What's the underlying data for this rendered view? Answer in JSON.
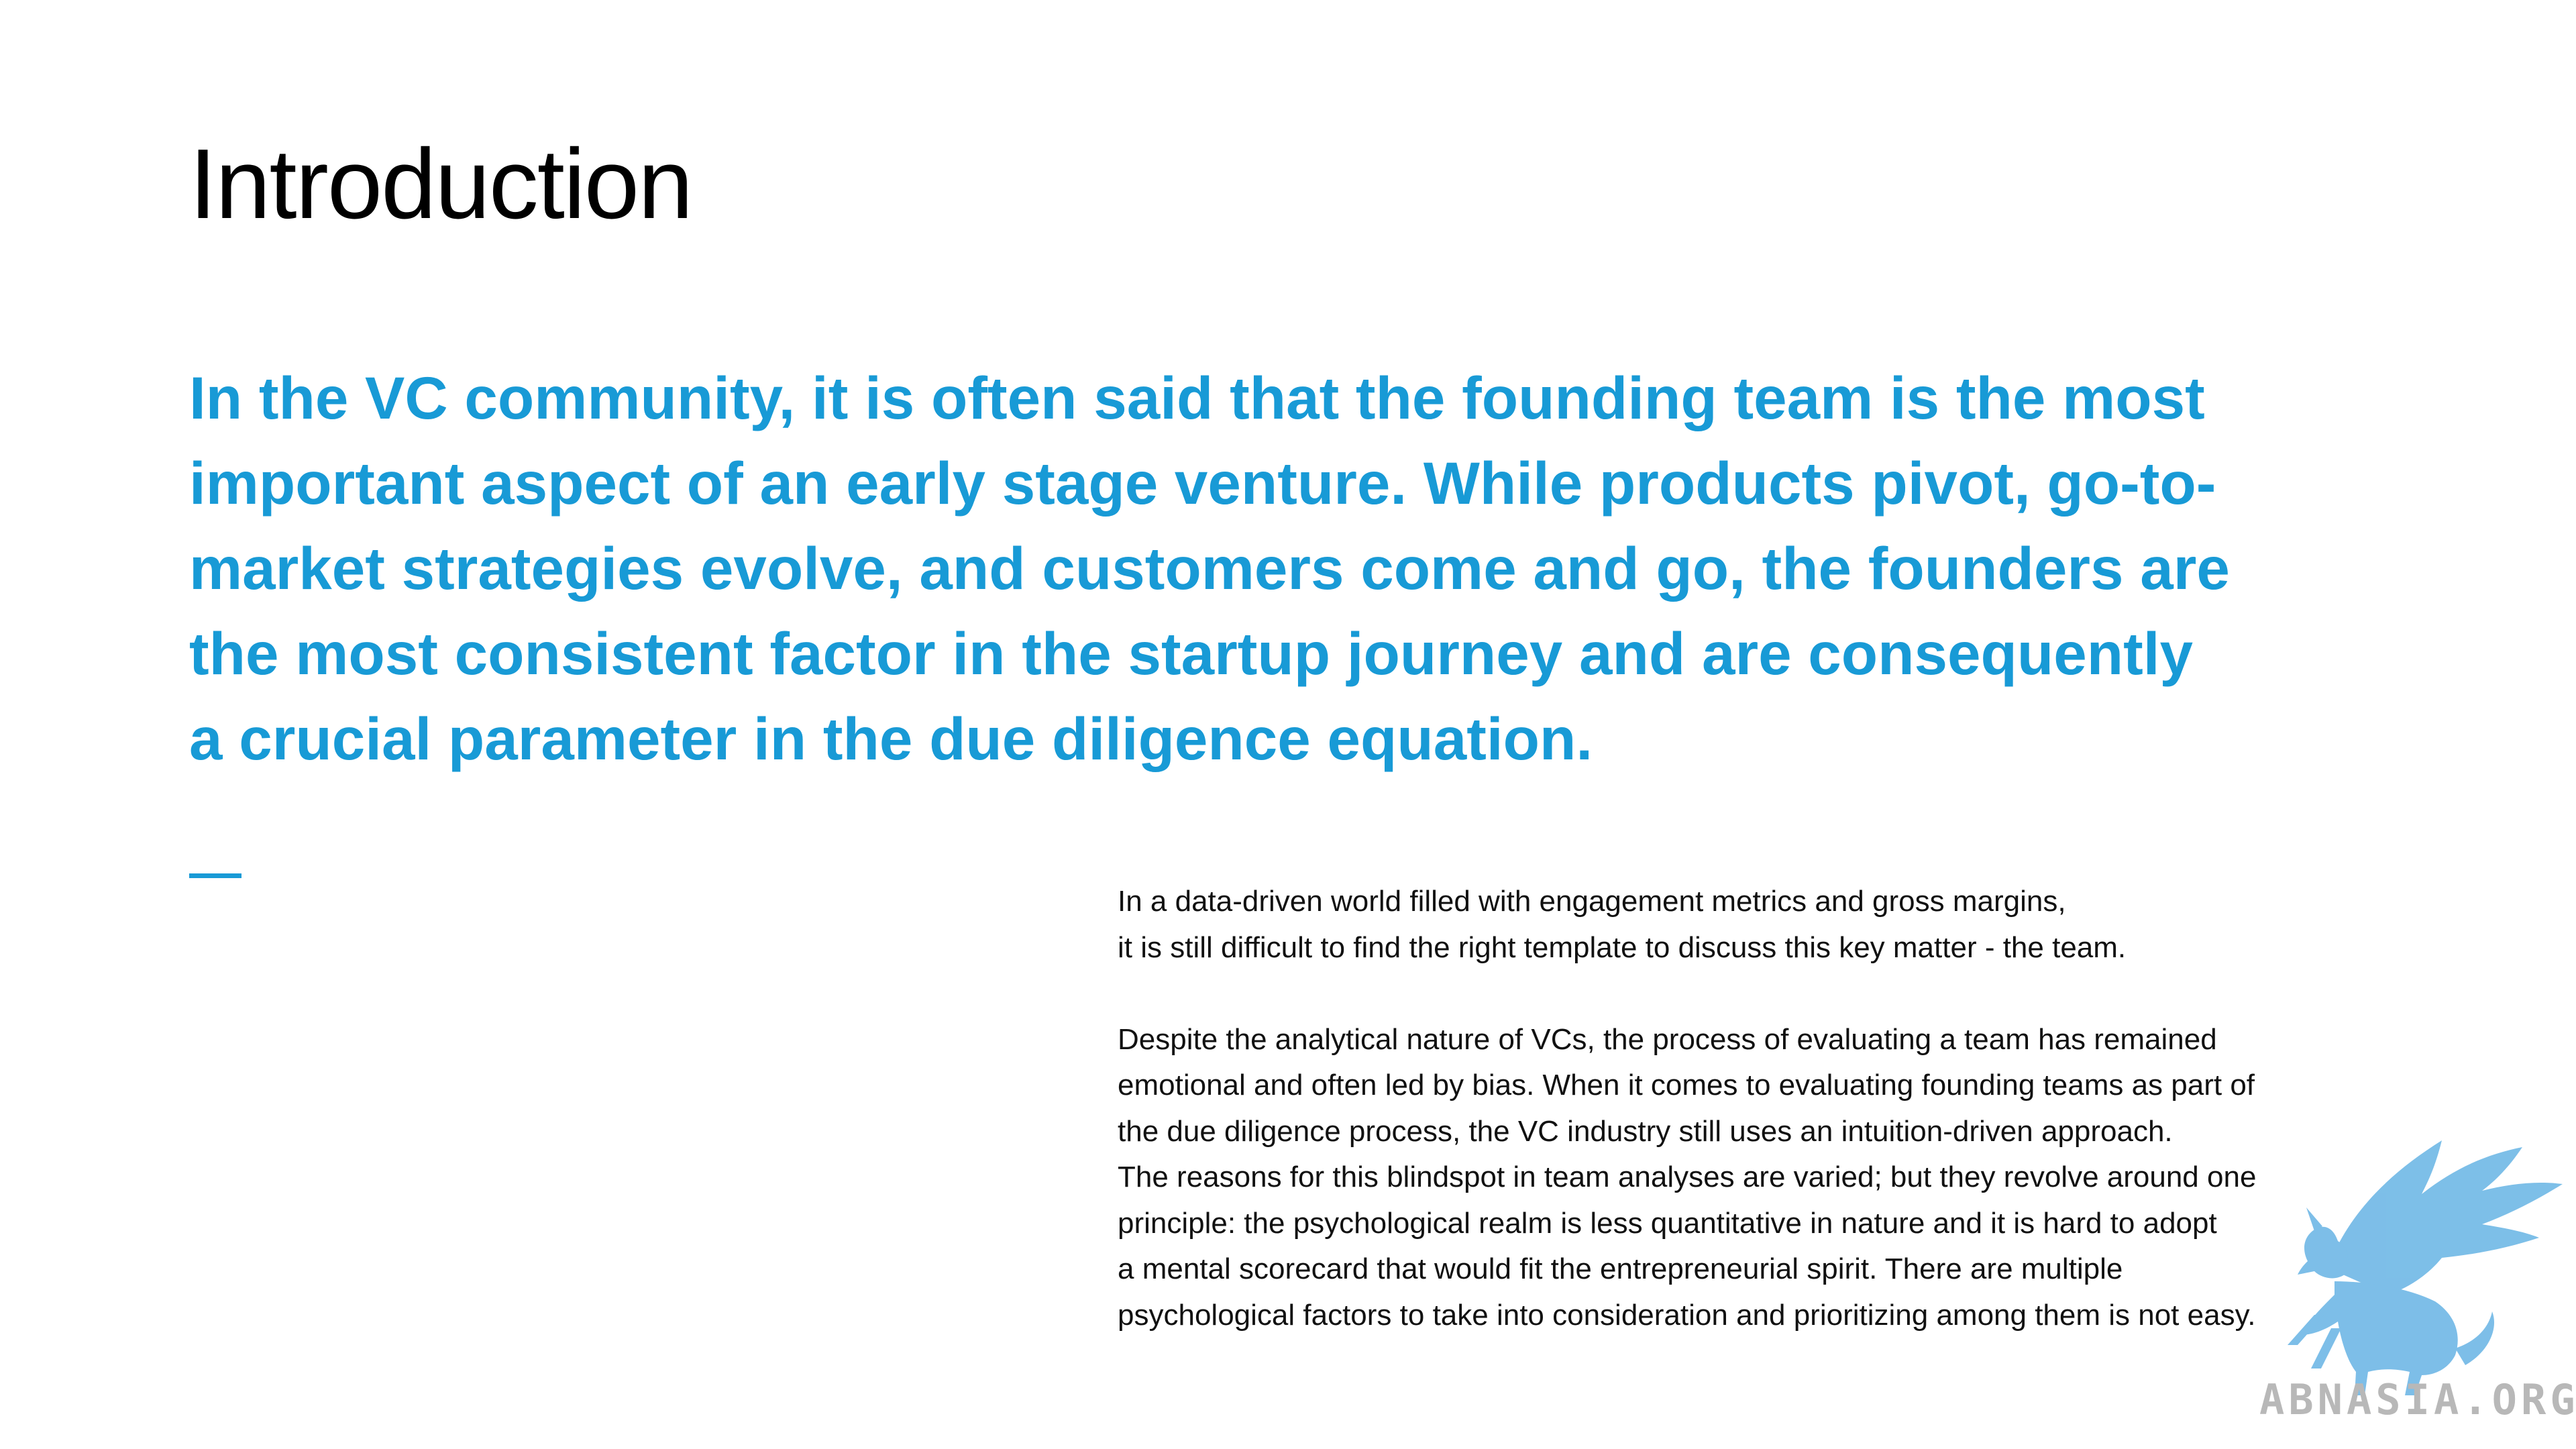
{
  "slide": {
    "title": "Introduction",
    "lead_lines": [
      "In the VC community, it is often said that the founding team is the most",
      "important aspect of an early stage venture. While products pivot, go-to-",
      "market strategies evolve, and customers come and go, the founders are",
      "the most consistent factor in the startup journey and are consequently",
      "a crucial parameter in the due diligence equation."
    ],
    "body_paragraph_1": [
      "In a data-driven world filled with engagement metrics and gross margins,",
      "it is still difficult to find the right template to discuss this key matter - the team."
    ],
    "body_paragraph_2": [
      "Despite the analytical nature of VCs, the process of evaluating a team has remained",
      "emotional and often led by bias. When it comes to evaluating founding teams as part of",
      "the due diligence process, the VC industry still uses an intuition-driven approach.",
      "The reasons for this blindspot in team analyses are varied; but they revolve around one",
      "principle: the psychological realm is less quantitative in nature and it is hard to adopt",
      "a mental scorecard that would fit the entrepreneurial spirit. There are multiple",
      "psychological factors to take into consideration and prioritizing among them is not easy."
    ]
  },
  "watermark": {
    "text": "ABNASIA.ORG",
    "icon": "griffin-logo-icon"
  },
  "colors": {
    "accent": "#189ad6",
    "title": "#000000",
    "body": "#111111",
    "watermark_blue": "#6fb8e6",
    "watermark_text": "#b8b8b8"
  }
}
